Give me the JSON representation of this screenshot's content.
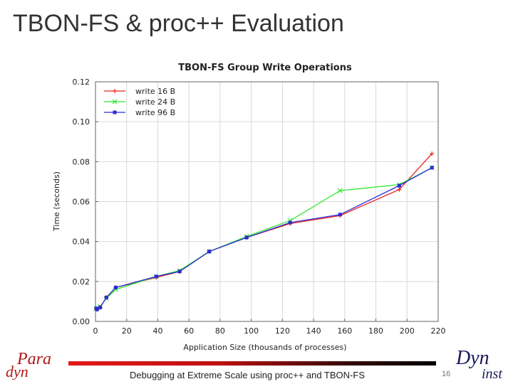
{
  "slide": {
    "title": "TBON-FS & proc++ Evaluation",
    "footer_text": "Debugging at Extreme Scale using proc++ and TBON-FS",
    "page_number": "16"
  },
  "logos": {
    "paradyn": {
      "line1": "Para",
      "line2": "dyn"
    },
    "dyninst": {
      "line1": "Dyn",
      "line2": "inst"
    }
  },
  "chart_data": {
    "type": "line",
    "title": "TBON-FS Group Write Operations",
    "xlabel": "Application Size (thousands of processes)",
    "ylabel": "Time (seconds)",
    "xlim": [
      0,
      220
    ],
    "ylim": [
      0,
      0.12
    ],
    "xticks": [
      "0",
      "20",
      "40",
      "60",
      "80",
      "100",
      "120",
      "140",
      "160",
      "180",
      "200",
      "220"
    ],
    "yticks": [
      "0.00",
      "0.02",
      "0.04",
      "0.06",
      "0.08",
      "0.10",
      "0.12"
    ],
    "grid": true,
    "legend_position": "top-left",
    "series": [
      {
        "name": "write 16 B",
        "color": "#e8231f",
        "marker": "plus",
        "x": [
          0.5,
          1,
          3,
          7,
          13,
          39,
          54,
          73,
          97,
          125,
          157,
          195,
          216
        ],
        "y": [
          0.0065,
          0.006,
          0.007,
          0.012,
          0.017,
          0.022,
          0.025,
          0.035,
          0.042,
          0.049,
          0.053,
          0.066,
          0.084
        ]
      },
      {
        "name": "write 24 B",
        "color": "#2ee82e",
        "marker": "cross",
        "x": [
          0.5,
          1,
          3,
          7,
          13,
          39,
          54,
          73,
          97,
          125,
          157,
          195,
          216
        ],
        "y": [
          0.0065,
          0.0065,
          0.0075,
          0.0115,
          0.016,
          0.0225,
          0.0255,
          0.035,
          0.0425,
          0.0505,
          0.0655,
          0.0685,
          0.077
        ]
      },
      {
        "name": "write 96 B",
        "color": "#2b2bd8",
        "marker": "box",
        "x": [
          0.5,
          1,
          3,
          7,
          13,
          39,
          54,
          73,
          97,
          125,
          157,
          195,
          216
        ],
        "y": [
          0.0065,
          0.006,
          0.007,
          0.012,
          0.017,
          0.0225,
          0.025,
          0.035,
          0.042,
          0.0495,
          0.0535,
          0.068,
          0.077
        ]
      }
    ]
  }
}
